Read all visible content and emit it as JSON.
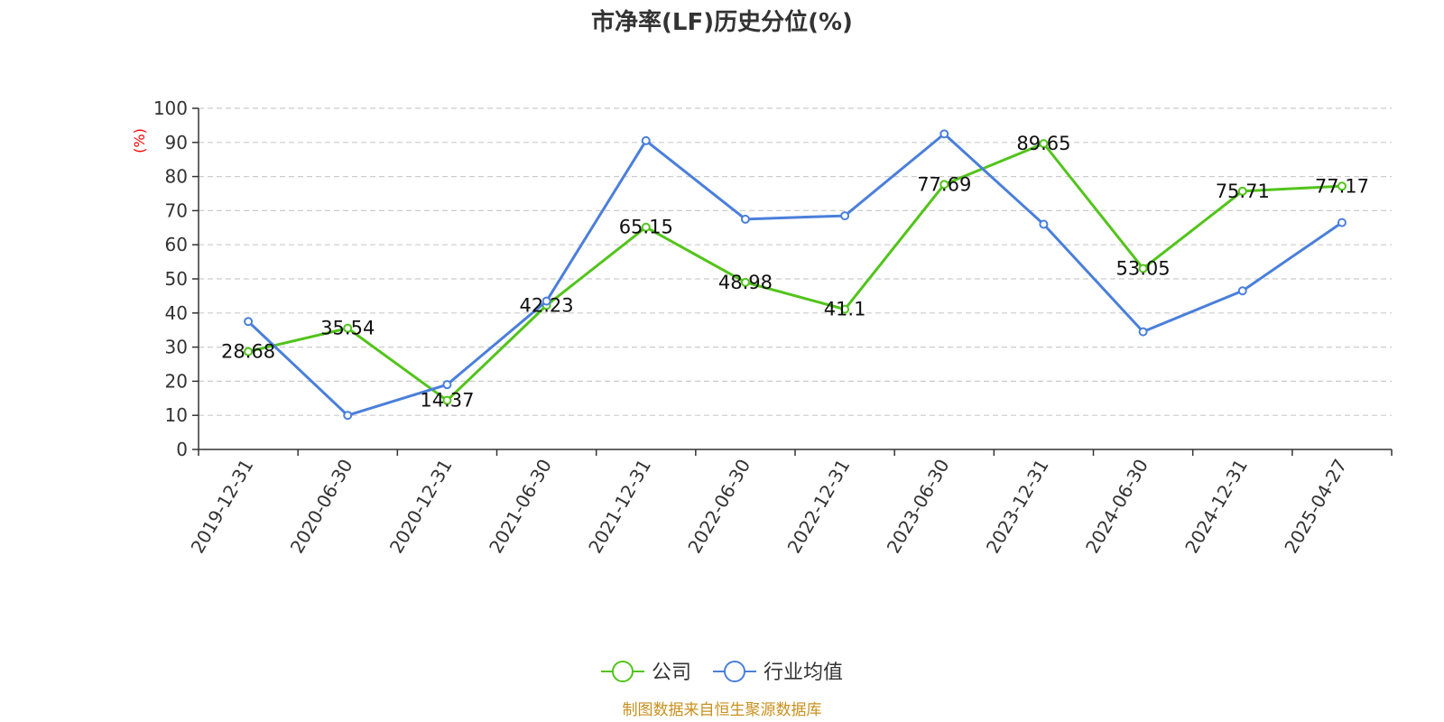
{
  "chart_data": {
    "type": "line",
    "title": "市净率(LF)历史分位(%)",
    "ylabel": "(%)",
    "ylim": [
      0,
      100
    ],
    "yticks": [
      0,
      10,
      20,
      30,
      40,
      50,
      60,
      70,
      80,
      90,
      100
    ],
    "categories": [
      "2019-12-31",
      "2020-06-30",
      "2020-12-31",
      "2021-06-30",
      "2021-12-31",
      "2022-06-30",
      "2022-12-31",
      "2023-06-30",
      "2023-12-31",
      "2024-06-30",
      "2024-12-31",
      "2025-04-27"
    ],
    "series": [
      {
        "name": "公司",
        "color": "#52c41a",
        "values": [
          28.68,
          35.54,
          14.37,
          42.23,
          65.15,
          48.98,
          41.1,
          77.69,
          89.65,
          53.05,
          75.71,
          77.17
        ],
        "labels": [
          "28.68",
          "35.54",
          "14.37",
          "42.23",
          "65.15",
          "48.98",
          "41.1",
          "77.69",
          "89.65",
          "53.05",
          "75.71",
          "77.17"
        ]
      },
      {
        "name": "行业均值",
        "color": "#4a7fdb",
        "values": [
          37.5,
          10.0,
          19.0,
          43.5,
          90.5,
          67.5,
          68.5,
          92.5,
          66.0,
          34.5,
          46.5,
          66.5
        ]
      }
    ],
    "grid": true,
    "legend": "bottom-center"
  },
  "source": {
    "text": "制图数据来自恒生聚源数据库",
    "color": "#c8901e"
  },
  "colors": {
    "axis": "#333333",
    "grid": "#cccccc",
    "unit": "#ff0000"
  }
}
